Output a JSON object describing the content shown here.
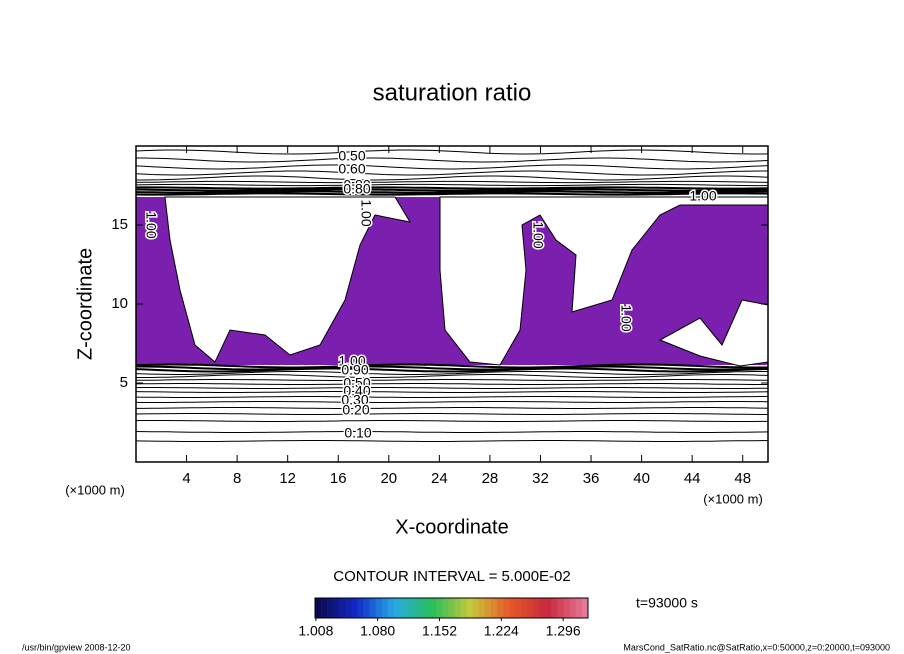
{
  "chart_data": {
    "type": "contour",
    "title": "saturation ratio",
    "x_label": "X-coordinate",
    "y_label": "Z-coordinate",
    "x_unit": "(×1000 m)",
    "xlim": [
      0,
      50
    ],
    "xticks": [
      4,
      8,
      12,
      16,
      20,
      24,
      28,
      32,
      36,
      40,
      44,
      48
    ],
    "ylim": [
      0,
      20
    ],
    "yticks": [
      5,
      10,
      15
    ],
    "shade_color": "#7a1fae",
    "contour_labels": [
      "0.50",
      "0.60",
      "0.80",
      "0.80",
      "1.00",
      "1.00",
      "1.00",
      "1.00",
      "1.00",
      "1.00",
      "0.90",
      "0.50",
      "0.40",
      "0.30",
      "0.20",
      "0.10"
    ],
    "contour_interval": "CONTOUR INTERVAL = 5.000E-02",
    "time": "t=93000 s",
    "colorbar": {
      "lim": [
        1.007,
        1.325
      ],
      "ticks": [
        1.008,
        {
          "value": 1.08,
          "label": "1.080"
        },
        1.152,
        1.224,
        1.296
      ]
    },
    "footer_left": "/usr/bin/gpview   2008-12-20",
    "footer_right": "MarsCond_SatRatio.nc@SatRatio,x=0:50000,z=0:20000,t=093000"
  }
}
